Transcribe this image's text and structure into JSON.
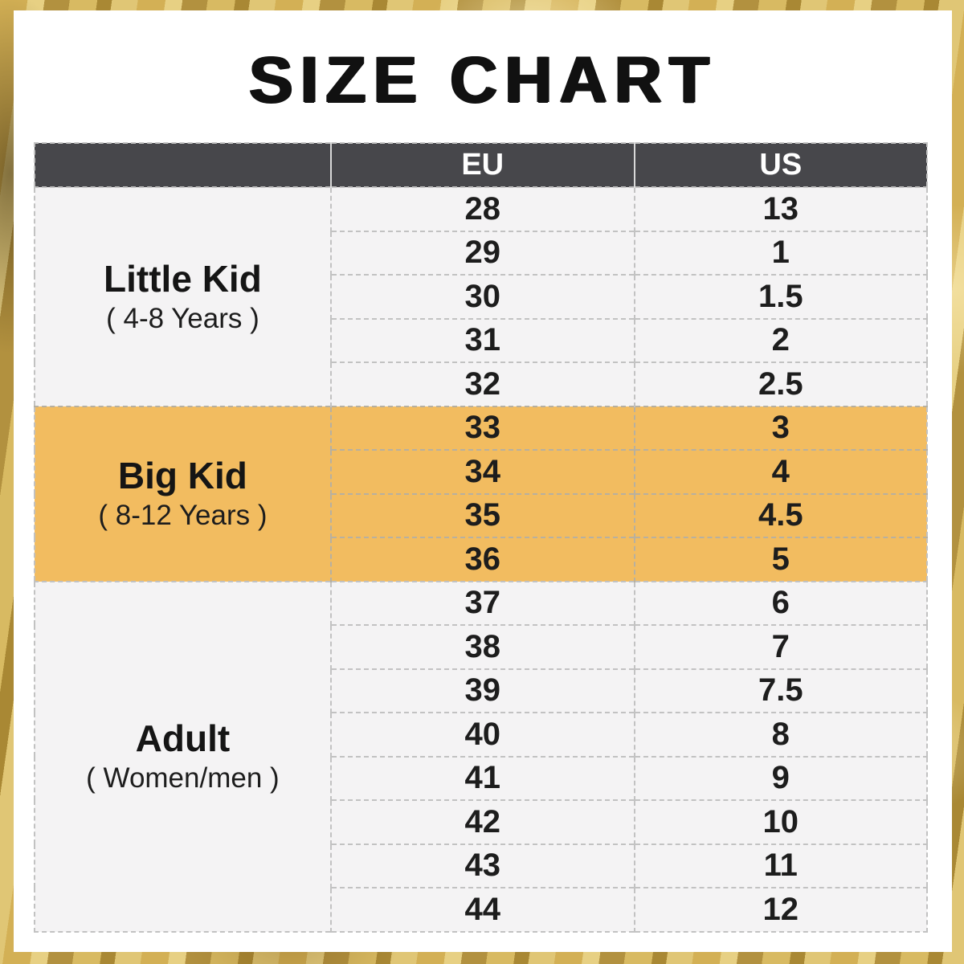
{
  "title": "SIZE CHART",
  "colors": {
    "frame_gold": "#c7a14b",
    "card_bg": "#ffffff",
    "header_bg": "#47474b",
    "header_text": "#ffffff",
    "row_bg": "#f4f3f4",
    "highlight_bg": "#f2bc60",
    "divider": "#c2c2c2",
    "text": "#1d1d1d"
  },
  "chart_data": {
    "type": "table",
    "title": "SIZE CHART",
    "columns": [
      "",
      "EU",
      "US"
    ],
    "sections": [
      {
        "group": "Little Kid",
        "group_note": "( 4-8 Years )",
        "highlighted": false,
        "rows": [
          {
            "eu": "28",
            "us": "13"
          },
          {
            "eu": "29",
            "us": "1"
          },
          {
            "eu": "30",
            "us": "1.5"
          },
          {
            "eu": "31",
            "us": "2"
          },
          {
            "eu": "32",
            "us": "2.5"
          }
        ]
      },
      {
        "group": "Big Kid",
        "group_note": "( 8-12 Years )",
        "highlighted": true,
        "rows": [
          {
            "eu": "33",
            "us": "3"
          },
          {
            "eu": "34",
            "us": "4"
          },
          {
            "eu": "35",
            "us": "4.5"
          },
          {
            "eu": "36",
            "us": "5"
          }
        ]
      },
      {
        "group": "Adult",
        "group_note": "( Women/men )",
        "highlighted": false,
        "rows": [
          {
            "eu": "37",
            "us": "6"
          },
          {
            "eu": "38",
            "us": "7"
          },
          {
            "eu": "39",
            "us": "7.5"
          },
          {
            "eu": "40",
            "us": "8"
          },
          {
            "eu": "41",
            "us": "9"
          },
          {
            "eu": "42",
            "us": "10"
          },
          {
            "eu": "43",
            "us": "11"
          },
          {
            "eu": "44",
            "us": "12"
          }
        ]
      }
    ]
  }
}
